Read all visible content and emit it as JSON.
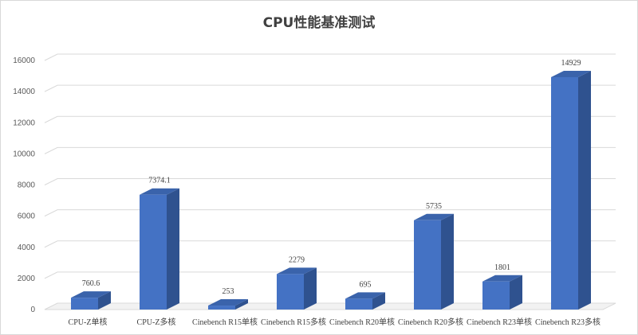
{
  "chart_data": {
    "type": "bar",
    "style": "3d-column",
    "title": "CPU性能基准测试",
    "categories": [
      "CPU-Z单核",
      "CPU-Z多核",
      "Cinebench R15单核",
      "Cinebench R15多核",
      "Cinebench R20单核",
      "Cinebench R20多核",
      "Cinebench R23单核",
      "Cinebench R23多核"
    ],
    "values": [
      760.6,
      7374.1,
      253,
      2279,
      695,
      5735,
      1801,
      14929
    ],
    "data_labels": [
      "760.6",
      "7374.1",
      "253",
      "2279",
      "695",
      "5735",
      "1801",
      "14929"
    ],
    "yticks": [
      "0",
      "2000",
      "4000",
      "6000",
      "8000",
      "10000",
      "12000",
      "14000",
      "16000"
    ],
    "ylim": [
      0,
      16000
    ],
    "xlabel": "",
    "ylabel": "",
    "grid": true,
    "legend": "none",
    "colors": {
      "bar_front": "#4472c4",
      "bar_side": "#2f528f",
      "bar_top": "#3a63ab",
      "gridline": "#d9d9d9",
      "text": "#404040"
    }
  }
}
